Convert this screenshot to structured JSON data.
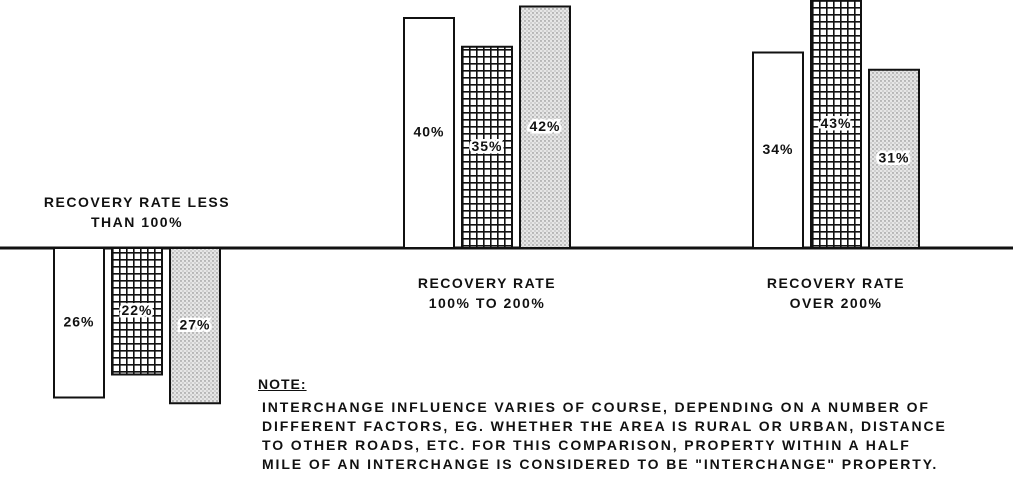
{
  "chart_data": {
    "type": "bar",
    "categories": [
      "RECOVERY RATE LESS\nTHAN 100%",
      "RECOVERY RATE\n100% TO 200%",
      "RECOVERY RATE\nOVER 200%"
    ],
    "category_direction": [
      "down",
      "up",
      "up"
    ],
    "series": [
      {
        "pattern": "plain",
        "values": [
          26,
          40,
          34
        ],
        "value_labels": [
          "26%",
          "40%",
          "34%"
        ]
      },
      {
        "pattern": "grid",
        "values": [
          22,
          35,
          43
        ],
        "value_labels": [
          "22%",
          "35%",
          "43%"
        ]
      },
      {
        "pattern": "dots",
        "values": [
          27,
          42,
          31
        ],
        "value_labels": [
          "27%",
          "42%",
          "31%"
        ]
      }
    ],
    "note": {
      "title": "NOTE:",
      "text": "INTERCHANGE INFLUENCE VARIES OF COURSE, DEPENDING ON A NUMBER OF\nDIFFERENT FACTORS, EG. WHETHER THE AREA IS RURAL OR URBAN, DISTANCE\nTO OTHER ROADS, ETC. FOR THIS COMPARISON, PROPERTY WITHIN A HALF\nMILE OF AN INTERCHANGE IS CONSIDERED TO BE \"INTERCHANGE\" PROPERTY."
    }
  }
}
